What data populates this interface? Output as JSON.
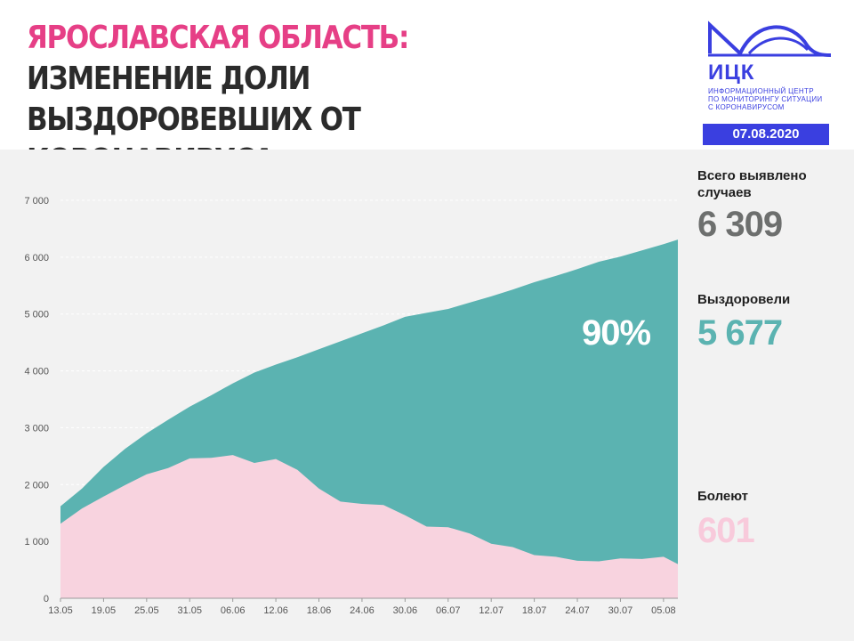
{
  "header": {
    "title_region": "ЯРОСЛАВСКАЯ ОБЛАСТЬ:",
    "title_rest_line1": "ИЗМЕНЕНИЕ ДОЛИ",
    "title_line2": "ВЫЗДОРОВЕВШИХ ОТ КОРОНАВИРУСА"
  },
  "logo": {
    "abbr": "ИЦК",
    "line1": "Информационный центр",
    "line2": "по мониторингу ситуации",
    "line3": "с коронавирусом"
  },
  "date": "07.08.2020",
  "summary": {
    "total_label": "Всего выявлено случаев",
    "total_value": "6 309",
    "recovered_label": "Выздоровели",
    "recovered_value": "5 677",
    "recovered_percent": "90%",
    "sick_label": "Болеют",
    "sick_value": "601"
  },
  "colors": {
    "accent_pink": "#e63f86",
    "brand_blue": "#3a3fe0",
    "recovered_teal": "#5bb3b1",
    "sick_pink": "#f8d3df",
    "total_gray": "#6d6f6e"
  },
  "chart_data": {
    "type": "area",
    "stacked": true,
    "x_ticks": [
      "13.05",
      "19.05",
      "25.05",
      "31.05",
      "06.06",
      "12.06",
      "18.06",
      "24.06",
      "30.06",
      "06.07",
      "12.07",
      "18.07",
      "24.07",
      "30.07",
      "05.08"
    ],
    "y_ticks": [
      "0",
      "1 000",
      "2 000",
      "3 000",
      "4 000",
      "5 000",
      "6 000",
      "7 000"
    ],
    "ylim": [
      0,
      7000
    ],
    "x_range": [
      "13.05",
      "07.08"
    ],
    "grid": "horizontal dashed",
    "x_step_days": 3,
    "x": [
      "13.05",
      "16.05",
      "19.05",
      "22.05",
      "25.05",
      "28.05",
      "31.05",
      "03.06",
      "06.06",
      "09.06",
      "12.06",
      "15.06",
      "18.06",
      "21.06",
      "24.06",
      "27.06",
      "30.06",
      "03.07",
      "06.07",
      "09.07",
      "12.07",
      "15.07",
      "18.07",
      "21.07",
      "24.07",
      "27.07",
      "30.07",
      "02.08",
      "05.08",
      "07.08"
    ],
    "series": [
      {
        "role": "sick",
        "values": [
          1310,
          1580,
          1790,
          1990,
          2180,
          2290,
          2460,
          2470,
          2520,
          2380,
          2450,
          2260,
          1930,
          1700,
          1660,
          1640,
          1460,
          1260,
          1250,
          1140,
          960,
          900,
          760,
          730,
          660,
          650,
          700,
          690,
          730,
          601
        ]
      },
      {
        "role": "total",
        "values": [
          1620,
          1930,
          2310,
          2630,
          2900,
          3140,
          3370,
          3570,
          3780,
          3970,
          4110,
          4240,
          4380,
          4520,
          4660,
          4800,
          4950,
          5020,
          5090,
          5200,
          5310,
          5430,
          5560,
          5670,
          5790,
          5920,
          6010,
          6120,
          6230,
          6309
        ]
      }
    ]
  }
}
